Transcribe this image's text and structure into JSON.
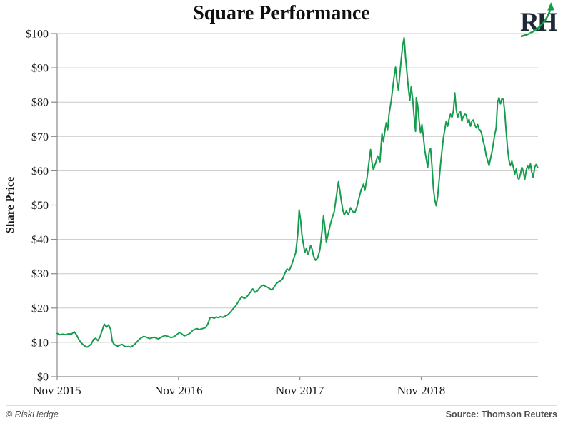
{
  "page": {
    "background": "#ffffff"
  },
  "header": {
    "logo_text": "RH",
    "logo_text_color": "#1d2935",
    "logo_arrow_color": "#169c4d"
  },
  "footer": {
    "left": "© RiskHedge",
    "right": "Source: Thomson Reuters",
    "text_color": "#4d4d4d"
  },
  "chart_data": {
    "type": "line",
    "title": "Square Performance",
    "xlabel": "",
    "ylabel": "Share Price",
    "y_unit": "USD",
    "x_unit": "months_since_Nov_2015",
    "ylim": [
      0,
      100
    ],
    "xlim": [
      0,
      47.5
    ],
    "grid": "horizontal",
    "legend": "none",
    "line_color": "#169c4d",
    "grid_color": "#c9c9c9",
    "axis_color": "#8a8a8a",
    "y_tick_values": [
      0,
      10,
      20,
      30,
      40,
      50,
      60,
      70,
      80,
      90,
      100
    ],
    "y_tick_labels": [
      "$0",
      "$10",
      "$20",
      "$30",
      "$40",
      "$50",
      "$60",
      "$70",
      "$80",
      "$90",
      "$100"
    ],
    "x_tick_positions_months": [
      0,
      12,
      24,
      36
    ],
    "x_tick_labels": [
      "Nov 2015",
      "Nov 2016",
      "Nov 2017",
      "Nov 2018"
    ],
    "points": [
      [
        0,
        12.6
      ],
      [
        0.28,
        12.2
      ],
      [
        0.56,
        12.4
      ],
      [
        0.85,
        12.2
      ],
      [
        1.13,
        12.5
      ],
      [
        1.41,
        12.4
      ],
      [
        1.69,
        13.1
      ],
      [
        1.91,
        12.2
      ],
      [
        2.12,
        11
      ],
      [
        2.33,
        10
      ],
      [
        2.54,
        9.4
      ],
      [
        2.75,
        8.9
      ],
      [
        2.96,
        8.6
      ],
      [
        3.18,
        9
      ],
      [
        3.39,
        9.6
      ],
      [
        3.6,
        10.9
      ],
      [
        3.81,
        11.2
      ],
      [
        4.02,
        10.5
      ],
      [
        4.24,
        11.6
      ],
      [
        4.45,
        13.5
      ],
      [
        4.66,
        15.3
      ],
      [
        4.87,
        14.4
      ],
      [
        5.08,
        15.1
      ],
      [
        5.29,
        13.8
      ],
      [
        5.44,
        10.5
      ],
      [
        5.58,
        9.6
      ],
      [
        5.79,
        9.1
      ],
      [
        6,
        8.9
      ],
      [
        6.21,
        9.2
      ],
      [
        6.42,
        9.4
      ],
      [
        6.64,
        8.9
      ],
      [
        6.85,
        8.7
      ],
      [
        7.06,
        8.8
      ],
      [
        7.27,
        8.6
      ],
      [
        7.48,
        9
      ],
      [
        7.69,
        9.5
      ],
      [
        7.91,
        10.2
      ],
      [
        8.12,
        10.9
      ],
      [
        8.33,
        11.3
      ],
      [
        8.54,
        11.7
      ],
      [
        8.75,
        11.6
      ],
      [
        8.96,
        11.3
      ],
      [
        9.18,
        11.1
      ],
      [
        9.39,
        11.3
      ],
      [
        9.6,
        11.5
      ],
      [
        9.81,
        11.2
      ],
      [
        10.02,
        11
      ],
      [
        10.24,
        11.4
      ],
      [
        10.45,
        11.7
      ],
      [
        10.66,
        12
      ],
      [
        10.87,
        11.8
      ],
      [
        11.08,
        11.6
      ],
      [
        11.29,
        11.4
      ],
      [
        11.51,
        11.6
      ],
      [
        11.72,
        12
      ],
      [
        11.93,
        12.5
      ],
      [
        12.14,
        12.9
      ],
      [
        12.35,
        12.4
      ],
      [
        12.56,
        11.9
      ],
      [
        12.78,
        12.1
      ],
      [
        12.99,
        12.4
      ],
      [
        13.2,
        12.8
      ],
      [
        13.41,
        13.5
      ],
      [
        13.62,
        13.8
      ],
      [
        13.84,
        14
      ],
      [
        14.05,
        13.7
      ],
      [
        14.26,
        13.9
      ],
      [
        14.47,
        14.1
      ],
      [
        14.68,
        14.3
      ],
      [
        14.89,
        15.3
      ],
      [
        15.11,
        17.1
      ],
      [
        15.32,
        17.3
      ],
      [
        15.53,
        17
      ],
      [
        15.74,
        17.4
      ],
      [
        15.95,
        17.2
      ],
      [
        16.16,
        17.5
      ],
      [
        16.38,
        17.3
      ],
      [
        16.59,
        17.6
      ],
      [
        16.8,
        17.9
      ],
      [
        17.01,
        18.4
      ],
      [
        17.22,
        19.1
      ],
      [
        17.44,
        19.9
      ],
      [
        17.65,
        20.6
      ],
      [
        17.86,
        21.6
      ],
      [
        18.07,
        22.6
      ],
      [
        18.28,
        23.3
      ],
      [
        18.49,
        22.8
      ],
      [
        18.71,
        23.1
      ],
      [
        18.92,
        23.9
      ],
      [
        19.13,
        24.7
      ],
      [
        19.34,
        25.6
      ],
      [
        19.55,
        24.6
      ],
      [
        19.76,
        24.9
      ],
      [
        19.98,
        25.7
      ],
      [
        20.19,
        26.4
      ],
      [
        20.4,
        26.7
      ],
      [
        20.61,
        26.3
      ],
      [
        20.82,
        26
      ],
      [
        21.04,
        25.6
      ],
      [
        21.25,
        25.3
      ],
      [
        21.46,
        26.1
      ],
      [
        21.67,
        27.1
      ],
      [
        21.88,
        27.6
      ],
      [
        22.09,
        27.9
      ],
      [
        22.31,
        28.6
      ],
      [
        22.52,
        30.1
      ],
      [
        22.73,
        31.4
      ],
      [
        22.94,
        30.9
      ],
      [
        23.15,
        32.3
      ],
      [
        23.36,
        34.2
      ],
      [
        23.58,
        36.1
      ],
      [
        23.79,
        41.5
      ],
      [
        23.93,
        48.6
      ],
      [
        24.07,
        45.5
      ],
      [
        24.21,
        41
      ],
      [
        24.35,
        38.6
      ],
      [
        24.49,
        36.2
      ],
      [
        24.64,
        37.4
      ],
      [
        24.78,
        35.6
      ],
      [
        24.92,
        36.6
      ],
      [
        25.06,
        38.2
      ],
      [
        25.2,
        37.2
      ],
      [
        25.34,
        35.2
      ],
      [
        25.55,
        33.9
      ],
      [
        25.76,
        34.6
      ],
      [
        25.98,
        37
      ],
      [
        26.19,
        42.5
      ],
      [
        26.33,
        46.8
      ],
      [
        26.47,
        43.5
      ],
      [
        26.61,
        39.3
      ],
      [
        26.75,
        41
      ],
      [
        26.96,
        43.8
      ],
      [
        27.18,
        46.2
      ],
      [
        27.39,
        48.1
      ],
      [
        27.6,
        52.5
      ],
      [
        27.81,
        56.8
      ],
      [
        27.95,
        54.2
      ],
      [
        28.09,
        51.3
      ],
      [
        28.24,
        48.6
      ],
      [
        28.38,
        47.1
      ],
      [
        28.59,
        48.3
      ],
      [
        28.8,
        47.2
      ],
      [
        29.01,
        49.2
      ],
      [
        29.22,
        48.1
      ],
      [
        29.44,
        47.8
      ],
      [
        29.65,
        49.6
      ],
      [
        29.86,
        52.2
      ],
      [
        30.07,
        54.6
      ],
      [
        30.28,
        56.1
      ],
      [
        30.42,
        54.3
      ],
      [
        30.64,
        58
      ],
      [
        30.85,
        63
      ],
      [
        30.99,
        66.2
      ],
      [
        31.13,
        62.5
      ],
      [
        31.27,
        60.3
      ],
      [
        31.48,
        62.2
      ],
      [
        31.69,
        64.3
      ],
      [
        31.91,
        62.6
      ],
      [
        32.12,
        70.8
      ],
      [
        32.26,
        68.5
      ],
      [
        32.4,
        71.5
      ],
      [
        32.54,
        74
      ],
      [
        32.68,
        72
      ],
      [
        32.82,
        76.5
      ],
      [
        33.04,
        80.5
      ],
      [
        33.18,
        84
      ],
      [
        33.32,
        87.5
      ],
      [
        33.46,
        90.2
      ],
      [
        33.6,
        86
      ],
      [
        33.74,
        83.5
      ],
      [
        33.88,
        88
      ],
      [
        34.02,
        92.5
      ],
      [
        34.16,
        96.5
      ],
      [
        34.31,
        98.8
      ],
      [
        34.45,
        93
      ],
      [
        34.59,
        88.5
      ],
      [
        34.73,
        84
      ],
      [
        34.87,
        80.5
      ],
      [
        35.01,
        84.5
      ],
      [
        35.15,
        81
      ],
      [
        35.29,
        76
      ],
      [
        35.44,
        71.5
      ],
      [
        35.51,
        81.3
      ],
      [
        35.65,
        79
      ],
      [
        35.79,
        74.5
      ],
      [
        35.93,
        71
      ],
      [
        36.07,
        73.5
      ],
      [
        36.21,
        70
      ],
      [
        36.35,
        66
      ],
      [
        36.49,
        63.5
      ],
      [
        36.64,
        61
      ],
      [
        36.78,
        65.5
      ],
      [
        36.92,
        66.5
      ],
      [
        37.06,
        61.5
      ],
      [
        37.2,
        55
      ],
      [
        37.34,
        51.5
      ],
      [
        37.48,
        49.8
      ],
      [
        37.62,
        52.5
      ],
      [
        37.76,
        57
      ],
      [
        37.91,
        62
      ],
      [
        38.05,
        66
      ],
      [
        38.19,
        69.5
      ],
      [
        38.33,
        72
      ],
      [
        38.47,
        74.5
      ],
      [
        38.61,
        73
      ],
      [
        38.75,
        75
      ],
      [
        38.89,
        76.5
      ],
      [
        39.04,
        75.5
      ],
      [
        39.18,
        77.5
      ],
      [
        39.32,
        82.7
      ],
      [
        39.46,
        78
      ],
      [
        39.6,
        75.5
      ],
      [
        39.74,
        76.8
      ],
      [
        39.88,
        77.2
      ],
      [
        40.02,
        74.5
      ],
      [
        40.16,
        75.8
      ],
      [
        40.31,
        76.5
      ],
      [
        40.45,
        76.3
      ],
      [
        40.59,
        74
      ],
      [
        40.73,
        75
      ],
      [
        40.87,
        73
      ],
      [
        41.01,
        74.5
      ],
      [
        41.15,
        74.8
      ],
      [
        41.29,
        73.5
      ],
      [
        41.44,
        72.5
      ],
      [
        41.58,
        73.5
      ],
      [
        41.72,
        72
      ],
      [
        41.86,
        71.8
      ],
      [
        42,
        70.5
      ],
      [
        42.14,
        68.5
      ],
      [
        42.28,
        67
      ],
      [
        42.42,
        64.5
      ],
      [
        42.56,
        63
      ],
      [
        42.71,
        61.5
      ],
      [
        42.85,
        63.5
      ],
      [
        42.99,
        65.5
      ],
      [
        43.13,
        68
      ],
      [
        43.27,
        70.5
      ],
      [
        43.41,
        72.5
      ],
      [
        43.55,
        80
      ],
      [
        43.69,
        81.3
      ],
      [
        43.84,
        79.5
      ],
      [
        43.98,
        81
      ],
      [
        44.12,
        80.8
      ],
      [
        44.26,
        77
      ],
      [
        44.4,
        71.5
      ],
      [
        44.54,
        66.5
      ],
      [
        44.68,
        63
      ],
      [
        44.82,
        61.5
      ],
      [
        44.96,
        62.8
      ],
      [
        45.11,
        61
      ],
      [
        45.25,
        59
      ],
      [
        45.39,
        60.5
      ],
      [
        45.53,
        58
      ],
      [
        45.67,
        57.5
      ],
      [
        45.81,
        59
      ],
      [
        45.95,
        61
      ],
      [
        46.09,
        60
      ],
      [
        46.24,
        57.5
      ],
      [
        46.38,
        60
      ],
      [
        46.52,
        61.5
      ],
      [
        46.66,
        60.5
      ],
      [
        46.8,
        62
      ],
      [
        46.94,
        59.5
      ],
      [
        47.08,
        58
      ],
      [
        47.22,
        61
      ],
      [
        47.36,
        61.8
      ],
      [
        47.51,
        61
      ]
    ]
  }
}
